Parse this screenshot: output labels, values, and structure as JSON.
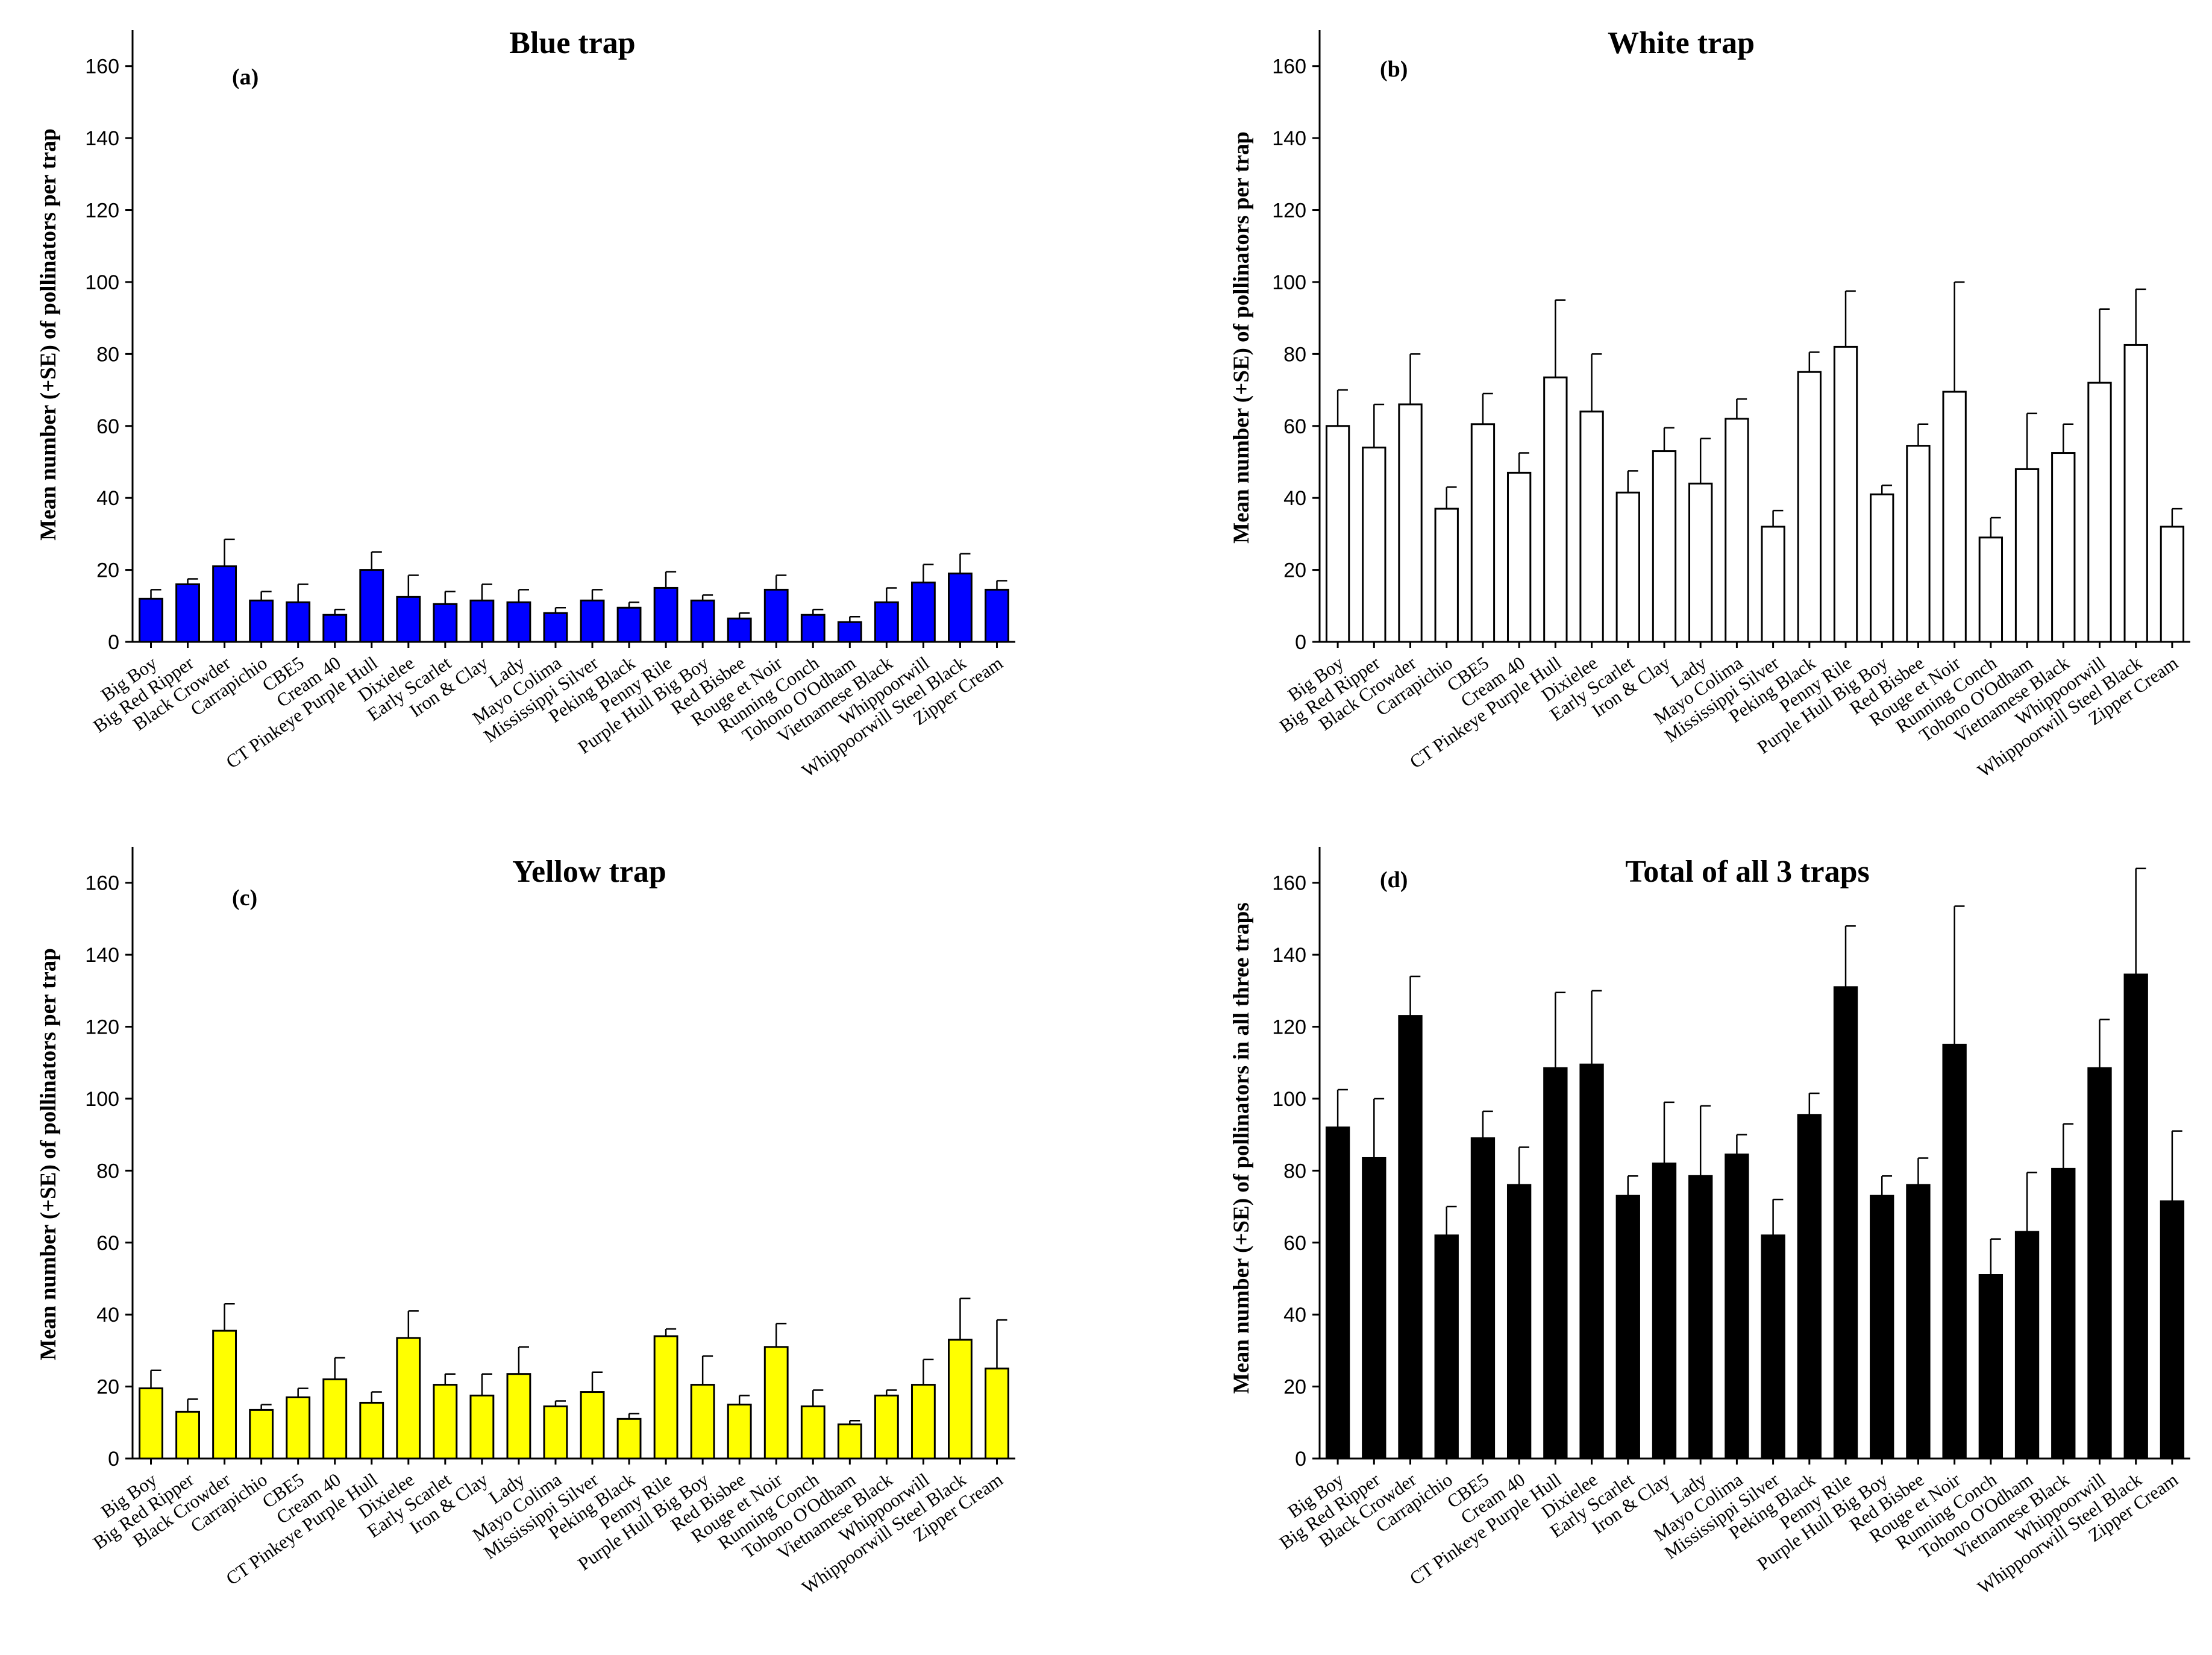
{
  "colors": {
    "blue_fill": "#0000ff",
    "white_fill": "#ffffff",
    "yellow_fill": "#ffff00",
    "black_fill": "#000000",
    "stroke": "#000000"
  },
  "categories": [
    "Big Boy",
    "Big Red Ripper",
    "Black Crowder",
    "Carrapichio",
    "CBE5",
    "Cream 40",
    "CT Pinkeye Purple Hull",
    "Dixielee",
    "Early Scarlet",
    "Iron & Clay",
    "Lady",
    "Mayo Colima",
    "Mississippi Silver",
    "Peking Black",
    "Penny Rile",
    "Purple Hull Big Boy",
    "Red Bisbee",
    "Rouge et Noir",
    "Running Conch",
    "Tohono O'Odham",
    "Vietnamese Black",
    "Whippoorwill",
    "Whippoorwill Steel Black",
    "Zipper Cream"
  ],
  "chart_data": [
    {
      "type": "bar",
      "panel": "(a)",
      "title": "Blue trap",
      "ylabel": "Mean number (+SE) of pollinators per trap",
      "xlabel": "",
      "ylim": [
        0,
        170
      ],
      "yticks": [
        0,
        20,
        40,
        60,
        80,
        100,
        120,
        140,
        160
      ],
      "fill": "blue_fill",
      "values": [
        12,
        16,
        21,
        11.5,
        11,
        7.5,
        20,
        12.5,
        10.5,
        11.5,
        11,
        8,
        11.5,
        9.5,
        15,
        11.5,
        6.5,
        14.5,
        7.5,
        5.5,
        11,
        16.5,
        19,
        14.5
      ],
      "errors": [
        2.5,
        1.5,
        7.5,
        2.5,
        5,
        1.5,
        5,
        6,
        3.5,
        4.5,
        3.5,
        1.5,
        3,
        1.5,
        4.5,
        1.5,
        1.5,
        4,
        1.5,
        1.5,
        4,
        5,
        5.5,
        2.5
      ]
    },
    {
      "type": "bar",
      "panel": "(b)",
      "title": "White trap",
      "ylabel": "Mean number (+SE) of pollinators per trap",
      "xlabel": "",
      "ylim": [
        0,
        170
      ],
      "yticks": [
        0,
        20,
        40,
        60,
        80,
        100,
        120,
        140,
        160
      ],
      "fill": "white_fill",
      "values": [
        60,
        54,
        66,
        37,
        60.5,
        47,
        73.5,
        64,
        41.5,
        53,
        44,
        62,
        32,
        75,
        82,
        41,
        54.5,
        69.5,
        29,
        48,
        52.5,
        72,
        82.5,
        32
      ],
      "errors": [
        10,
        12,
        14,
        6,
        8.5,
        5.5,
        21.5,
        16,
        6,
        6.5,
        12.5,
        5.5,
        4.5,
        5.5,
        15.5,
        2.5,
        6,
        30.5,
        5.5,
        15.5,
        8,
        20.5,
        15.5,
        5
      ]
    },
    {
      "type": "bar",
      "panel": "(c)",
      "title": "Yellow trap",
      "ylabel": "Mean number (+SE) of pollinators per trap",
      "xlabel": "",
      "ylim": [
        0,
        170
      ],
      "yticks": [
        0,
        20,
        40,
        60,
        80,
        100,
        120,
        140,
        160
      ],
      "fill": "yellow_fill",
      "values": [
        19.5,
        13,
        35.5,
        13.5,
        17,
        22,
        15.5,
        33.5,
        20.5,
        17.5,
        23.5,
        14.5,
        18.5,
        11,
        34,
        20.5,
        15,
        31,
        14.5,
        9.5,
        17.5,
        20.5,
        33,
        25
      ],
      "errors": [
        5,
        3.5,
        7.5,
        1.5,
        2.5,
        6,
        3,
        7.5,
        3,
        6,
        7.5,
        1.5,
        5.5,
        1.5,
        2,
        8,
        2.5,
        6.5,
        4.5,
        1,
        1.5,
        7,
        11.5,
        13.5
      ]
    },
    {
      "type": "bar",
      "panel": "(d)",
      "title": "Total of all 3 traps",
      "ylabel": "Mean number (+SE) of pollinators in all three traps",
      "xlabel": "",
      "ylim": [
        0,
        170
      ],
      "yticks": [
        0,
        20,
        40,
        60,
        80,
        100,
        120,
        140,
        160
      ],
      "fill": "black_fill",
      "values": [
        92,
        83.5,
        123,
        62,
        89,
        76,
        108.5,
        109.5,
        73,
        82,
        78.5,
        84.5,
        62,
        95.5,
        131,
        73,
        76,
        115,
        51,
        63,
        80.5,
        108.5,
        134.5,
        71.5
      ],
      "errors": [
        10.5,
        16.5,
        11,
        8,
        7.5,
        10.5,
        21,
        20.5,
        5.5,
        17,
        19.5,
        5.5,
        10,
        6,
        17,
        5.5,
        7.5,
        38.5,
        10,
        16.5,
        12.5,
        13.5,
        29.5,
        19.5
      ]
    }
  ]
}
